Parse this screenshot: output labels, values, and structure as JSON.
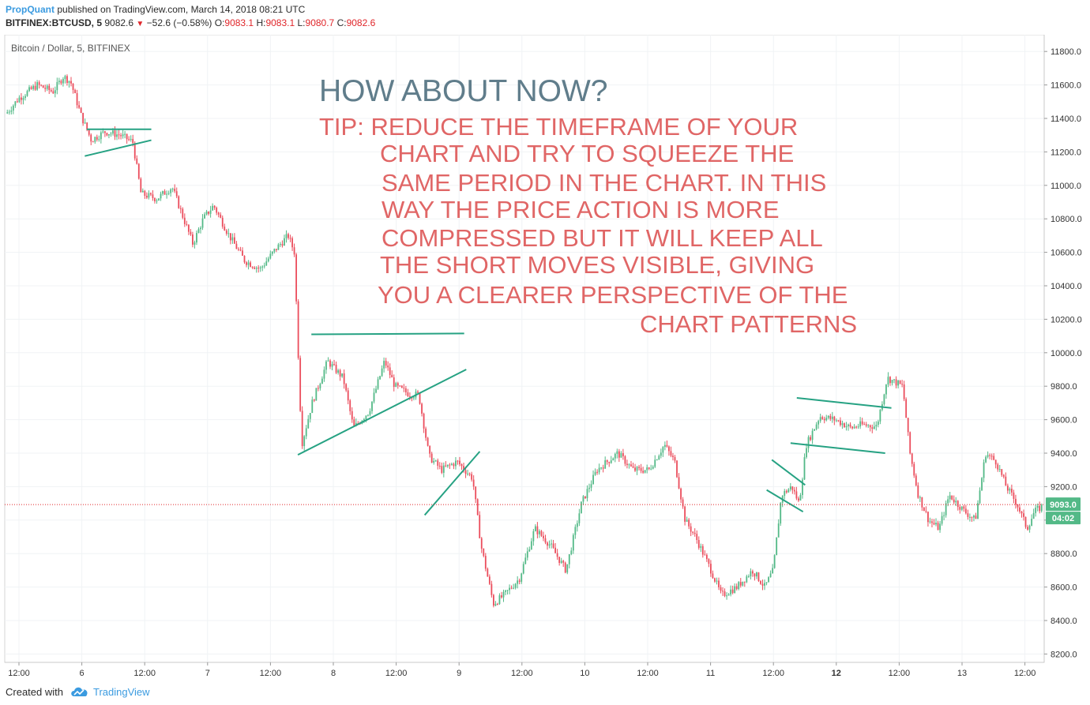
{
  "header": {
    "author": "PropQuant",
    "published_text": "published on TradingView.com, March 14, 2018 08:21 UTC",
    "symbol": "BITFINEX:BTCUSD, 5",
    "last": "9082.6",
    "change": "−52.6 (−0.58%)",
    "o_label": "O:",
    "o_value": "9083.1",
    "h_label": "H:",
    "h_value": "9083.1",
    "l_label": "L:",
    "l_value": "9080.7",
    "c_label": "C:",
    "c_value": "9082.6"
  },
  "footer": {
    "created_with": "Created with",
    "brand": "TradingView"
  },
  "colors": {
    "up": "#53b987",
    "down": "#eb4d5c",
    "trendline": "#26a283",
    "headline": "#607d8b",
    "tip": "#e06666",
    "price_badge": "#53b987"
  },
  "chart_data": {
    "type": "candlestick",
    "title": "Bitcoin / Dollar, 5, BITFINEX",
    "ylim": [
      8150,
      11900
    ],
    "y_ticks": [
      "11800.0",
      "11600.0",
      "11400.0",
      "11200.0",
      "11000.0",
      "10800.0",
      "10600.0",
      "10400.0",
      "10200.0",
      "10000.0",
      "9800.0",
      "9600.0",
      "9400.0",
      "9200.0",
      "9000.0",
      "8800.0",
      "8600.0",
      "8400.0",
      "8200.0"
    ],
    "x_ticks": [
      "12:00",
      "6",
      "12:00",
      "7",
      "12:00",
      "8",
      "12:00",
      "9",
      "12:00",
      "10",
      "12:00",
      "11",
      "12:00",
      "12",
      "12:00",
      "13",
      "12:00"
    ],
    "bold_x_tick": "12",
    "current_price": "9093.0",
    "countdown": "04:02",
    "price_path": [
      [
        0,
        11430
      ],
      [
        0.012,
        11520
      ],
      [
        0.03,
        11600
      ],
      [
        0.045,
        11560
      ],
      [
        0.055,
        11650
      ],
      [
        0.062,
        11620
      ],
      [
        0.072,
        11420
      ],
      [
        0.082,
        11270
      ],
      [
        0.095,
        11320
      ],
      [
        0.11,
        11300
      ],
      [
        0.122,
        11260
      ],
      [
        0.13,
        10950
      ],
      [
        0.145,
        10920
      ],
      [
        0.16,
        10990
      ],
      [
        0.17,
        10820
      ],
      [
        0.18,
        10650
      ],
      [
        0.19,
        10800
      ],
      [
        0.2,
        10880
      ],
      [
        0.215,
        10700
      ],
      [
        0.23,
        10550
      ],
      [
        0.245,
        10500
      ],
      [
        0.26,
        10620
      ],
      [
        0.272,
        10700
      ],
      [
        0.278,
        10600
      ],
      [
        0.285,
        9450
      ],
      [
        0.295,
        9700
      ],
      [
        0.31,
        9950
      ],
      [
        0.325,
        9850
      ],
      [
        0.335,
        9550
      ],
      [
        0.35,
        9650
      ],
      [
        0.365,
        9950
      ],
      [
        0.375,
        9800
      ],
      [
        0.39,
        9750
      ],
      [
        0.398,
        9750
      ],
      [
        0.408,
        9380
      ],
      [
        0.42,
        9300
      ],
      [
        0.435,
        9350
      ],
      [
        0.45,
        9250
      ],
      [
        0.458,
        8850
      ],
      [
        0.47,
        8500
      ],
      [
        0.48,
        8550
      ],
      [
        0.495,
        8650
      ],
      [
        0.51,
        8950
      ],
      [
        0.525,
        8850
      ],
      [
        0.54,
        8700
      ],
      [
        0.555,
        9100
      ],
      [
        0.57,
        9300
      ],
      [
        0.59,
        9400
      ],
      [
        0.605,
        9300
      ],
      [
        0.62,
        9300
      ],
      [
        0.635,
        9450
      ],
      [
        0.645,
        9350
      ],
      [
        0.655,
        9000
      ],
      [
        0.665,
        8900
      ],
      [
        0.68,
        8700
      ],
      [
        0.69,
        8550
      ],
      [
        0.705,
        8600
      ],
      [
        0.72,
        8700
      ],
      [
        0.732,
        8600
      ],
      [
        0.74,
        8700
      ],
      [
        0.748,
        9150
      ],
      [
        0.758,
        9200
      ],
      [
        0.765,
        9100
      ],
      [
        0.772,
        9450
      ],
      [
        0.785,
        9620
      ],
      [
        0.8,
        9600
      ],
      [
        0.815,
        9550
      ],
      [
        0.825,
        9570
      ],
      [
        0.84,
        9560
      ],
      [
        0.85,
        9850
      ],
      [
        0.865,
        9800
      ],
      [
        0.872,
        9400
      ],
      [
        0.88,
        9150
      ],
      [
        0.89,
        9000
      ],
      [
        0.9,
        8950
      ],
      [
        0.91,
        9150
      ],
      [
        0.925,
        9050
      ],
      [
        0.935,
        9000
      ],
      [
        0.945,
        9400
      ],
      [
        0.955,
        9350
      ],
      [
        0.965,
        9200
      ],
      [
        0.975,
        9100
      ],
      [
        0.985,
        8950
      ],
      [
        0.992,
        9050
      ],
      [
        1.0,
        9083
      ]
    ],
    "trendlines": [
      {
        "x1": 0.079,
        "y1": 11335,
        "x2": 0.141,
        "y2": 11335
      },
      {
        "x1": 0.077,
        "y1": 11175,
        "x2": 0.141,
        "y2": 11270
      },
      {
        "x1": 0.295,
        "y1": 10110,
        "x2": 0.442,
        "y2": 10115
      },
      {
        "x1": 0.282,
        "y1": 9390,
        "x2": 0.444,
        "y2": 9900
      },
      {
        "x1": 0.404,
        "y1": 9030,
        "x2": 0.457,
        "y2": 9410
      },
      {
        "x1": 0.738,
        "y1": 9360,
        "x2": 0.77,
        "y2": 9210
      },
      {
        "x1": 0.733,
        "y1": 9180,
        "x2": 0.768,
        "y2": 9050
      },
      {
        "x1": 0.762,
        "y1": 9730,
        "x2": 0.853,
        "y2": 9670
      },
      {
        "x1": 0.756,
        "y1": 9460,
        "x2": 0.847,
        "y2": 9400
      }
    ],
    "annotations": {
      "headline": "HOW ABOUT NOW?",
      "tip_lines": [
        "TIP: REDUCE THE TIMEFRAME OF YOUR",
        "CHART AND TRY TO SQUEEZE THE",
        "SAME PERIOD IN THE CHART. IN THIS",
        "WAY THE PRICE ACTION IS MORE",
        "COMPRESSED BUT IT WILL KEEP ALL",
        "THE SHORT MOVES VISIBLE, GIVING",
        "YOU A CLEARER PERSPECTIVE OF THE",
        "CHART PATTERNS"
      ]
    }
  }
}
